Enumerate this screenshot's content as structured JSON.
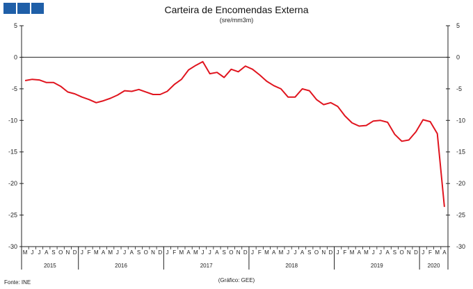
{
  "header": {
    "logo_icon": "ine-logo-icon",
    "brand_color": "#1f5fa8"
  },
  "footer": {
    "source": "Fonte: INE",
    "credit": "(Gráfico: GEE)"
  },
  "chart_data": {
    "type": "line",
    "title": "Carteira de Encomendas Externa",
    "subtitle": "(sre/mm3m)",
    "xlabel": "",
    "ylabel": "",
    "ylim": [
      -30,
      5
    ],
    "yticks": [
      5,
      0,
      -5,
      -10,
      -15,
      -20,
      -25,
      -30
    ],
    "grid": false,
    "zero_line": true,
    "line_color": "#e0141e",
    "month_labels": [
      "M",
      "J",
      "J",
      "A",
      "S",
      "O",
      "N",
      "D",
      "J",
      "F",
      "M",
      "A",
      "M",
      "J",
      "J",
      "A",
      "S",
      "O",
      "N",
      "D",
      "J",
      "F",
      "M",
      "A",
      "M",
      "J",
      "J",
      "A",
      "S",
      "O",
      "N",
      "D",
      "J",
      "F",
      "M",
      "A",
      "M",
      "J",
      "J",
      "A",
      "S",
      "O",
      "N",
      "D",
      "J",
      "F",
      "M",
      "A",
      "M",
      "J",
      "J",
      "A",
      "S",
      "O",
      "N",
      "D",
      "J",
      "F",
      "M",
      "A"
    ],
    "year_labels": [
      {
        "label": "2015",
        "start": 0,
        "end": 8
      },
      {
        "label": "2016",
        "start": 8,
        "end": 20
      },
      {
        "label": "2017",
        "start": 20,
        "end": 32
      },
      {
        "label": "2018",
        "start": 32,
        "end": 44
      },
      {
        "label": "2019",
        "start": 44,
        "end": 56
      },
      {
        "label": "2020",
        "start": 56,
        "end": 60
      }
    ],
    "x": [
      "2015-05",
      "2015-06",
      "2015-07",
      "2015-08",
      "2015-09",
      "2015-10",
      "2015-11",
      "2015-12",
      "2016-01",
      "2016-02",
      "2016-03",
      "2016-04",
      "2016-05",
      "2016-06",
      "2016-07",
      "2016-08",
      "2016-09",
      "2016-10",
      "2016-11",
      "2016-12",
      "2017-01",
      "2017-02",
      "2017-03",
      "2017-04",
      "2017-05",
      "2017-06",
      "2017-07",
      "2017-08",
      "2017-09",
      "2017-10",
      "2017-11",
      "2017-12",
      "2018-01",
      "2018-02",
      "2018-03",
      "2018-04",
      "2018-05",
      "2018-06",
      "2018-07",
      "2018-08",
      "2018-09",
      "2018-10",
      "2018-11",
      "2018-12",
      "2019-01",
      "2019-02",
      "2019-03",
      "2019-04",
      "2019-05",
      "2019-06",
      "2019-07",
      "2019-08",
      "2019-09",
      "2019-10",
      "2019-11",
      "2019-12",
      "2020-01",
      "2020-02",
      "2020-03",
      "2020-04"
    ],
    "series": [
      {
        "values": [
          -3.7,
          -3.5,
          -3.6,
          -4.0,
          -4.0,
          -4.6,
          -5.5,
          -5.8,
          -6.3,
          -6.7,
          -7.2,
          -6.9,
          -6.5,
          -6.0,
          -5.3,
          -5.4,
          -5.1,
          -5.5,
          -5.9,
          -5.9,
          -5.4,
          -4.3,
          -3.5,
          -2.0,
          -1.3,
          -0.7,
          -2.6,
          -2.4,
          -3.2,
          -1.9,
          -2.3,
          -1.4,
          -1.9,
          -2.8,
          -3.8,
          -4.5,
          -5.0,
          -6.3,
          -6.3,
          -5.0,
          -5.3,
          -6.7,
          -7.5,
          -7.2,
          -7.8,
          -9.3,
          -10.4,
          -10.9,
          -10.8,
          -10.1,
          -10.0,
          -10.3,
          -12.2,
          -13.3,
          -13.1,
          -11.8,
          -9.9,
          -10.2,
          -12.1,
          -23.7
        ]
      }
    ]
  }
}
